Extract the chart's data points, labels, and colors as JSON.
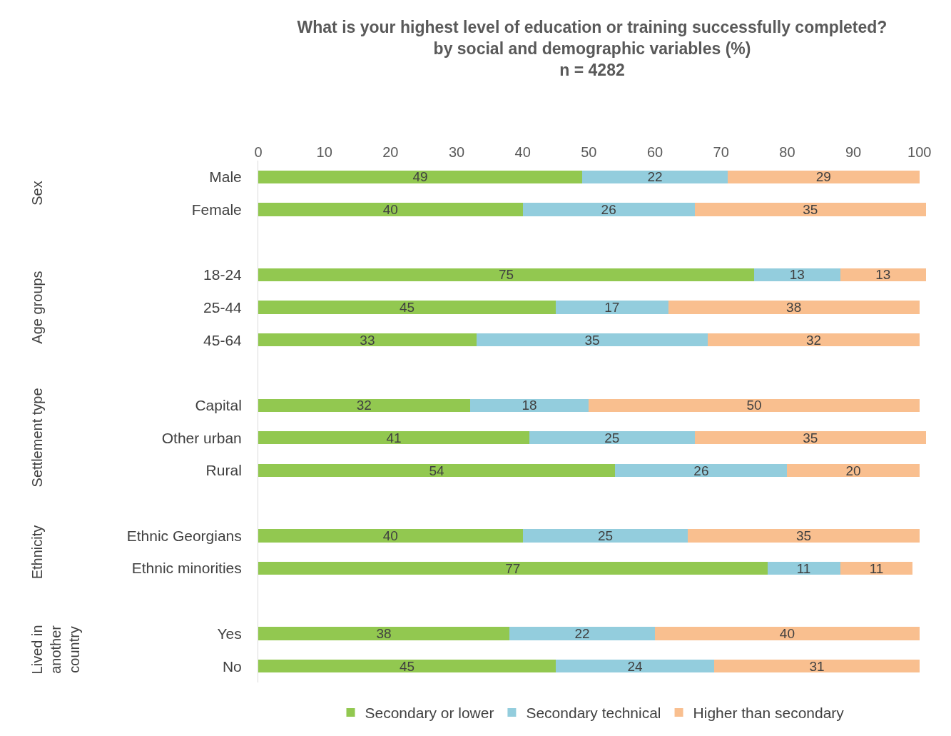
{
  "chart_data": {
    "type": "bar",
    "orientation": "horizontal",
    "stacked": true,
    "title": "What is your highest level of education or training successfully completed?",
    "subtitle": "by social and demographic variables (%)\nn = 4282",
    "categories": [
      "Male",
      "Female",
      null,
      "18-24",
      "25-44",
      "45-64",
      null,
      "Capital",
      "Other urban",
      "Rural",
      null,
      "Ethnic Georgians",
      "Ethnic minorities",
      null,
      "Yes",
      "No"
    ],
    "annotations": [
      "Sex",
      "Age groups",
      "Settlement type",
      "Ethnicity",
      "Lived in another country"
    ],
    "series": [
      {
        "name": "Secondary or lower",
        "color": "#92c850",
        "values": [
          49,
          40,
          null,
          75,
          45,
          33,
          null,
          32,
          41,
          54,
          null,
          40,
          77,
          null,
          38,
          45
        ]
      },
      {
        "name": "Secondary technical",
        "color": "#93cddd",
        "values": [
          22,
          26,
          null,
          13,
          17,
          35,
          null,
          18,
          25,
          26,
          null,
          25,
          11,
          null,
          22,
          24
        ]
      },
      {
        "name": "Higher than secondary",
        "color": "#f9bf8f",
        "values": [
          29,
          35,
          null,
          13,
          38,
          32,
          null,
          50,
          35,
          20,
          null,
          35,
          11,
          null,
          40,
          31
        ]
      }
    ],
    "xlim": [
      0,
      101
    ],
    "xticks": [
      0,
      10,
      20,
      30,
      40,
      50,
      60,
      70,
      80,
      90,
      100
    ],
    "data_labels": true,
    "legend": "bottom"
  }
}
